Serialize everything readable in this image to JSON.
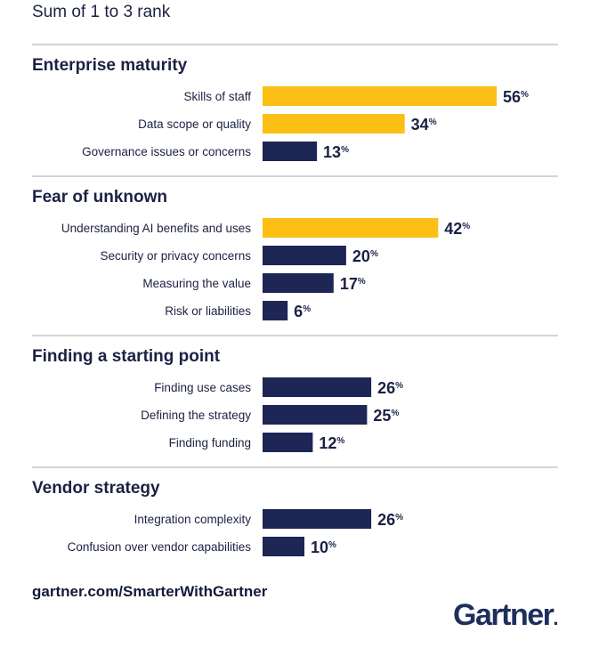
{
  "subtitle": "Sum of 1 to 3 rank",
  "footer": {
    "url": "gartner.com/SmarterWithGartner",
    "logo": "Gartner"
  },
  "colors": {
    "highlight": "#fcbf16",
    "bar": "#1d2654",
    "text": "#1c2143",
    "rule": "#a8a8a8"
  },
  "chart_data": {
    "type": "bar",
    "orientation": "horizontal",
    "title": "",
    "subtitle": "Sum of 1 to 3 rank",
    "unit": "%",
    "xlim": [
      0,
      56
    ],
    "grid": false,
    "groups": [
      {
        "name": "Enterprise maturity",
        "items": [
          {
            "label": "Skills of staff",
            "value": 56,
            "highlight": true
          },
          {
            "label": "Data scope or quality",
            "value": 34,
            "highlight": true
          },
          {
            "label": "Governance issues or concerns",
            "value": 13,
            "highlight": false
          }
        ]
      },
      {
        "name": "Fear of unknown",
        "items": [
          {
            "label": "Understanding AI benefits and uses",
            "value": 42,
            "highlight": true
          },
          {
            "label": "Security or privacy concerns",
            "value": 20,
            "highlight": false
          },
          {
            "label": "Measuring the value",
            "value": 17,
            "highlight": false
          },
          {
            "label": "Risk or liabilities",
            "value": 6,
            "highlight": false
          }
        ]
      },
      {
        "name": "Finding a starting point",
        "items": [
          {
            "label": "Finding use cases",
            "value": 26,
            "highlight": false
          },
          {
            "label": "Defining the strategy",
            "value": 25,
            "highlight": false
          },
          {
            "label": "Finding funding",
            "value": 12,
            "highlight": false
          }
        ]
      },
      {
        "name": "Vendor strategy",
        "items": [
          {
            "label": "Integration complexity",
            "value": 26,
            "highlight": false
          },
          {
            "label": "Confusion over vendor capabilities",
            "value": 10,
            "highlight": false
          }
        ]
      }
    ]
  }
}
